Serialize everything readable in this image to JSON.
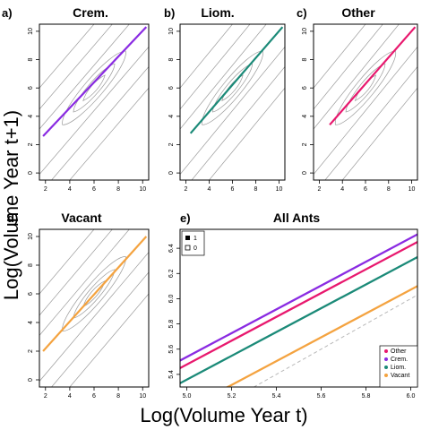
{
  "figure": {
    "xlabel": "Log(Volume Year t)",
    "ylabel": "Log(Volume Year t+1)"
  },
  "colors": {
    "Crem.": "#8a2be2",
    "Liom.": "#1b8a78",
    "Other": "#e8186e",
    "Vacant": "#f4a340",
    "contour": "#9a9a9a",
    "reference": "#b8b8b8"
  },
  "chart_data": [
    {
      "panel": "a)",
      "title": "Crem.",
      "type": "line",
      "xlim": [
        1.5,
        10.5
      ],
      "ylim": [
        -0.5,
        10.5
      ],
      "xticks": [
        "2",
        "4",
        "6",
        "8",
        "10"
      ],
      "yticks": [
        "0",
        "2",
        "4",
        "6",
        "8",
        "10"
      ],
      "series": [
        {
          "name": "Crem.",
          "x": [
            1.8,
            10.3
          ],
          "y": [
            2.6,
            10.3
          ]
        }
      ]
    },
    {
      "panel": "b)",
      "title": "Liom.",
      "type": "line",
      "xlim": [
        1.5,
        10.5
      ],
      "ylim": [
        -0.5,
        10.5
      ],
      "xticks": [
        "2",
        "4",
        "6",
        "8",
        "10"
      ],
      "yticks": [
        "0",
        "2",
        "4",
        "6",
        "8",
        "10"
      ],
      "series": [
        {
          "name": "Liom.",
          "x": [
            2.4,
            10.3
          ],
          "y": [
            2.8,
            10.3
          ]
        }
      ]
    },
    {
      "panel": "c)",
      "title": "Other",
      "type": "line",
      "xlim": [
        1.5,
        10.5
      ],
      "ylim": [
        -0.5,
        10.5
      ],
      "xticks": [
        "2",
        "4",
        "6",
        "8",
        "10"
      ],
      "yticks": [
        "0",
        "2",
        "4",
        "6",
        "8",
        "10"
      ],
      "series": [
        {
          "name": "Other",
          "x": [
            2.9,
            10.3
          ],
          "y": [
            3.4,
            10.3
          ]
        }
      ]
    },
    {
      "panel": "d)",
      "title": "Vacant",
      "type": "line",
      "xlim": [
        1.5,
        10.5
      ],
      "ylim": [
        -0.5,
        10.5
      ],
      "xticks": [
        "2",
        "4",
        "6",
        "8",
        "10"
      ],
      "yticks": [
        "0",
        "2",
        "4",
        "6",
        "8",
        "10"
      ],
      "series": [
        {
          "name": "Vacant",
          "x": [
            1.8,
            10.3
          ],
          "y": [
            2.0,
            10.0
          ]
        }
      ]
    },
    {
      "panel": "e)",
      "title": "All Ants",
      "type": "line",
      "xlim": [
        4.97,
        6.03
      ],
      "ylim": [
        5.3,
        6.55
      ],
      "xticks": [
        "5.0",
        "5.2",
        "5.4",
        "5.6",
        "5.8",
        "6.0"
      ],
      "yticks": [
        "5.4",
        "5.6",
        "5.8",
        "6.0",
        "6.2",
        "6.4"
      ],
      "series": [
        {
          "name": "Other",
          "x": [
            4.97,
            6.03
          ],
          "y": [
            5.45,
            6.45
          ]
        },
        {
          "name": "Crem.",
          "x": [
            4.97,
            6.03
          ],
          "y": [
            5.51,
            6.51
          ]
        },
        {
          "name": "Liom.",
          "x": [
            4.97,
            6.03
          ],
          "y": [
            5.33,
            6.33
          ]
        },
        {
          "name": "Vacant",
          "x": [
            5.13,
            6.03
          ],
          "y": [
            5.25,
            6.1
          ]
        }
      ],
      "legend_top_left": [
        "1",
        "0"
      ],
      "legend_placement": "bottom-right"
    }
  ]
}
